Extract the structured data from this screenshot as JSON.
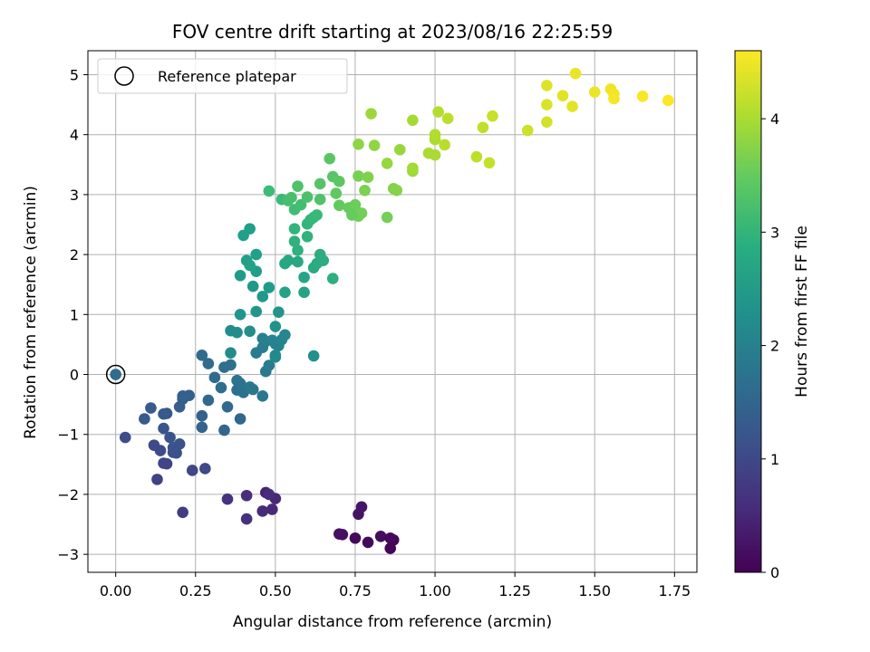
{
  "chart_data": {
    "type": "scatter",
    "title": "FOV centre drift starting at 2023/08/16 22:25:59",
    "xlabel": "Angular distance from reference (arcmin)",
    "ylabel": "Rotation from reference (arcmin)",
    "colorbar_label": "Hours from first FF file",
    "xlim": [
      -0.087,
      1.82
    ],
    "ylim": [
      -3.3,
      5.4
    ],
    "clim": [
      0,
      4.6
    ],
    "colormap": "viridis",
    "grid": true,
    "legend_placement": "top-left",
    "x_ticks": [
      "0.00",
      "0.25",
      "0.50",
      "0.75",
      "1.00",
      "1.25",
      "1.50",
      "1.75"
    ],
    "y_ticks": [
      "−3",
      "−2",
      "−1",
      "0",
      "1",
      "2",
      "3",
      "4",
      "5"
    ],
    "colorbar_ticks": [
      "0",
      "1",
      "2",
      "3",
      "4"
    ],
    "reference_point": {
      "name": "Reference platepar",
      "x": 0.0,
      "y": 0.0
    },
    "points": [
      {
        "x": 0.86,
        "y": -2.9,
        "t": 0.05
      },
      {
        "x": 0.87,
        "y": -2.76,
        "t": 0.07
      },
      {
        "x": 0.79,
        "y": -2.8,
        "t": 0.1
      },
      {
        "x": 0.75,
        "y": -2.73,
        "t": 0.12
      },
      {
        "x": 0.83,
        "y": -2.7,
        "t": 0.15
      },
      {
        "x": 0.71,
        "y": -2.67,
        "t": 0.18
      },
      {
        "x": 0.7,
        "y": -2.66,
        "t": 0.2
      },
      {
        "x": 0.76,
        "y": -2.33,
        "t": 0.23
      },
      {
        "x": 0.77,
        "y": -2.21,
        "t": 0.26
      },
      {
        "x": 0.86,
        "y": -2.73,
        "t": 0.1
      },
      {
        "x": 0.47,
        "y": -1.97,
        "t": 0.45
      },
      {
        "x": 0.5,
        "y": -2.07,
        "t": 0.5
      },
      {
        "x": 0.49,
        "y": -2.25,
        "t": 0.52
      },
      {
        "x": 0.46,
        "y": -2.28,
        "t": 0.55
      },
      {
        "x": 0.48,
        "y": -2.0,
        "t": 0.58
      },
      {
        "x": 0.41,
        "y": -2.02,
        "t": 0.62
      },
      {
        "x": 0.41,
        "y": -2.41,
        "t": 0.65
      },
      {
        "x": 0.35,
        "y": -2.08,
        "t": 0.68
      },
      {
        "x": 0.21,
        "y": -2.3,
        "t": 0.82
      },
      {
        "x": 0.13,
        "y": -1.75,
        "t": 0.9
      },
      {
        "x": 0.16,
        "y": -1.49,
        "t": 0.93
      },
      {
        "x": 0.15,
        "y": -1.48,
        "t": 0.95
      },
      {
        "x": 0.24,
        "y": -1.6,
        "t": 0.98
      },
      {
        "x": 0.28,
        "y": -1.57,
        "t": 1.0
      },
      {
        "x": 0.14,
        "y": -1.27,
        "t": 1.03
      },
      {
        "x": 0.12,
        "y": -1.18,
        "t": 1.05
      },
      {
        "x": 0.03,
        "y": -1.05,
        "t": 1.07
      },
      {
        "x": 0.18,
        "y": -1.3,
        "t": 1.1
      },
      {
        "x": 0.19,
        "y": -1.31,
        "t": 1.12
      },
      {
        "x": 0.2,
        "y": -1.16,
        "t": 1.15
      },
      {
        "x": 0.18,
        "y": -1.22,
        "t": 1.17
      },
      {
        "x": 0.17,
        "y": -1.05,
        "t": 1.2
      },
      {
        "x": 0.15,
        "y": -0.9,
        "t": 1.22
      },
      {
        "x": 0.16,
        "y": -0.65,
        "t": 1.25
      },
      {
        "x": 0.15,
        "y": -0.66,
        "t": 1.27
      },
      {
        "x": 0.09,
        "y": -0.74,
        "t": 1.3
      },
      {
        "x": 0.11,
        "y": -0.56,
        "t": 1.32
      },
      {
        "x": 0.2,
        "y": -0.54,
        "t": 1.35
      },
      {
        "x": 0.21,
        "y": -0.41,
        "t": 1.37
      },
      {
        "x": 0.23,
        "y": -0.35,
        "t": 1.4
      },
      {
        "x": 0.21,
        "y": -0.36,
        "t": 1.42
      },
      {
        "x": 0.27,
        "y": -0.69,
        "t": 1.45
      },
      {
        "x": 0.27,
        "y": -0.88,
        "t": 1.47
      },
      {
        "x": 0.34,
        "y": -0.93,
        "t": 1.5
      },
      {
        "x": 0.39,
        "y": -0.74,
        "t": 1.52
      },
      {
        "x": 0.29,
        "y": -0.43,
        "t": 1.55
      },
      {
        "x": 0.35,
        "y": -0.54,
        "t": 1.57
      },
      {
        "x": 0.31,
        "y": -0.05,
        "t": 1.6
      },
      {
        "x": 0.33,
        "y": -0.22,
        "t": 1.62
      },
      {
        "x": 0.34,
        "y": 0.12,
        "t": 1.65
      },
      {
        "x": 0.36,
        "y": 0.16,
        "t": 1.67
      },
      {
        "x": 0.38,
        "y": -0.26,
        "t": 1.7
      },
      {
        "x": 0.4,
        "y": -0.3,
        "t": 1.72
      },
      {
        "x": 0.38,
        "y": -0.1,
        "t": 1.75
      },
      {
        "x": 0.39,
        "y": -0.15,
        "t": 1.77
      },
      {
        "x": 0.43,
        "y": -0.25,
        "t": 1.8
      },
      {
        "x": 0.46,
        "y": -0.36,
        "t": 1.82
      },
      {
        "x": 0.42,
        "y": -0.21,
        "t": 1.85
      },
      {
        "x": 0.47,
        "y": 0.05,
        "t": 1.87
      },
      {
        "x": 0.48,
        "y": 0.15,
        "t": 1.9
      },
      {
        "x": 0.44,
        "y": 0.36,
        "t": 1.92
      },
      {
        "x": 0.46,
        "y": 0.45,
        "t": 1.95
      },
      {
        "x": 0.47,
        "y": 0.55,
        "t": 1.97
      },
      {
        "x": 0.46,
        "y": 0.6,
        "t": 2.0
      },
      {
        "x": 0.49,
        "y": 0.57,
        "t": 2.02
      },
      {
        "x": 0.5,
        "y": 0.51,
        "t": 2.05
      },
      {
        "x": 0.51,
        "y": 0.48,
        "t": 2.07
      },
      {
        "x": 0.52,
        "y": 0.58,
        "t": 2.1
      },
      {
        "x": 0.53,
        "y": 0.66,
        "t": 2.12
      },
      {
        "x": 0.5,
        "y": 0.32,
        "t": 2.15
      },
      {
        "x": 0.5,
        "y": 0.29,
        "t": 2.17
      },
      {
        "x": 0.36,
        "y": 0.36,
        "t": 2.2
      },
      {
        "x": 0.38,
        "y": 0.7,
        "t": 2.22
      },
      {
        "x": 0.36,
        "y": 0.73,
        "t": 2.25
      },
      {
        "x": 0.42,
        "y": 0.72,
        "t": 2.27
      },
      {
        "x": 0.27,
        "y": 0.32,
        "t": 1.6
      },
      {
        "x": 0.29,
        "y": 0.18,
        "t": 1.62
      },
      {
        "x": 0.62,
        "y": 0.31,
        "t": 2.3
      },
      {
        "x": 0.5,
        "y": 0.8,
        "t": 2.35
      },
      {
        "x": 0.51,
        "y": 1.04,
        "t": 2.37
      },
      {
        "x": 0.39,
        "y": 1.0,
        "t": 2.4
      },
      {
        "x": 0.44,
        "y": 1.05,
        "t": 2.42
      },
      {
        "x": 0.46,
        "y": 1.3,
        "t": 2.45
      },
      {
        "x": 0.43,
        "y": 1.47,
        "t": 2.47
      },
      {
        "x": 0.48,
        "y": 1.45,
        "t": 2.5
      },
      {
        "x": 0.39,
        "y": 1.65,
        "t": 2.52
      },
      {
        "x": 0.44,
        "y": 1.72,
        "t": 2.55
      },
      {
        "x": 0.44,
        "y": 2.0,
        "t": 2.57
      },
      {
        "x": 0.41,
        "y": 1.9,
        "t": 2.6
      },
      {
        "x": 0.42,
        "y": 1.82,
        "t": 2.62
      },
      {
        "x": 0.53,
        "y": 1.37,
        "t": 2.65
      },
      {
        "x": 0.59,
        "y": 1.37,
        "t": 2.67
      },
      {
        "x": 0.59,
        "y": 1.62,
        "t": 2.7
      },
      {
        "x": 0.53,
        "y": 1.85,
        "t": 2.72
      },
      {
        "x": 0.54,
        "y": 1.9,
        "t": 2.75
      },
      {
        "x": 0.57,
        "y": 1.88,
        "t": 2.77
      },
      {
        "x": 0.62,
        "y": 1.78,
        "t": 2.8
      },
      {
        "x": 0.63,
        "y": 1.85,
        "t": 2.82
      },
      {
        "x": 0.65,
        "y": 1.9,
        "t": 2.85
      },
      {
        "x": 0.64,
        "y": 2.0,
        "t": 2.87
      },
      {
        "x": 0.68,
        "y": 1.6,
        "t": 2.9
      },
      {
        "x": 0.57,
        "y": 2.07,
        "t": 2.92
      },
      {
        "x": 0.56,
        "y": 2.22,
        "t": 2.95
      },
      {
        "x": 0.6,
        "y": 2.3,
        "t": 2.97
      },
      {
        "x": 0.56,
        "y": 2.43,
        "t": 3.0
      },
      {
        "x": 0.6,
        "y": 2.51,
        "t": 3.02
      },
      {
        "x": 0.61,
        "y": 2.58,
        "t": 3.05
      },
      {
        "x": 0.62,
        "y": 2.62,
        "t": 3.07
      },
      {
        "x": 0.63,
        "y": 2.66,
        "t": 3.1
      },
      {
        "x": 0.4,
        "y": 2.32,
        "t": 2.57
      },
      {
        "x": 0.42,
        "y": 2.43,
        "t": 2.6
      },
      {
        "x": 0.52,
        "y": 2.92,
        "t": 3.12
      },
      {
        "x": 0.48,
        "y": 3.06,
        "t": 3.15
      },
      {
        "x": 0.56,
        "y": 2.75,
        "t": 3.17
      },
      {
        "x": 0.58,
        "y": 2.83,
        "t": 3.2
      },
      {
        "x": 0.54,
        "y": 2.9,
        "t": 3.22
      },
      {
        "x": 0.55,
        "y": 2.95,
        "t": 3.25
      },
      {
        "x": 0.6,
        "y": 2.96,
        "t": 3.27
      },
      {
        "x": 0.57,
        "y": 3.14,
        "t": 3.3
      },
      {
        "x": 0.64,
        "y": 2.92,
        "t": 3.32
      },
      {
        "x": 0.64,
        "y": 3.18,
        "t": 3.35
      },
      {
        "x": 0.68,
        "y": 3.3,
        "t": 3.37
      },
      {
        "x": 0.67,
        "y": 3.6,
        "t": 3.4
      },
      {
        "x": 0.7,
        "y": 3.22,
        "t": 3.42
      },
      {
        "x": 0.69,
        "y": 3.02,
        "t": 3.45
      },
      {
        "x": 0.7,
        "y": 2.82,
        "t": 3.47
      },
      {
        "x": 0.73,
        "y": 2.78,
        "t": 3.5
      },
      {
        "x": 0.74,
        "y": 2.7,
        "t": 3.52
      },
      {
        "x": 0.75,
        "y": 2.83,
        "t": 3.55
      },
      {
        "x": 0.76,
        "y": 2.64,
        "t": 3.57
      },
      {
        "x": 0.77,
        "y": 2.69,
        "t": 3.6
      },
      {
        "x": 0.74,
        "y": 2.66,
        "t": 3.5
      },
      {
        "x": 0.76,
        "y": 3.31,
        "t": 3.65
      },
      {
        "x": 0.78,
        "y": 3.07,
        "t": 3.67
      },
      {
        "x": 0.79,
        "y": 3.29,
        "t": 3.7
      },
      {
        "x": 0.85,
        "y": 2.62,
        "t": 3.62
      },
      {
        "x": 0.87,
        "y": 3.1,
        "t": 3.72
      },
      {
        "x": 0.88,
        "y": 3.07,
        "t": 3.75
      },
      {
        "x": 0.76,
        "y": 3.84,
        "t": 3.8
      },
      {
        "x": 0.81,
        "y": 3.82,
        "t": 3.82
      },
      {
        "x": 0.85,
        "y": 3.52,
        "t": 3.85
      },
      {
        "x": 0.89,
        "y": 3.75,
        "t": 3.87
      },
      {
        "x": 0.8,
        "y": 4.35,
        "t": 3.9
      },
      {
        "x": 0.93,
        "y": 3.39,
        "t": 3.92
      },
      {
        "x": 0.93,
        "y": 3.44,
        "t": 3.95
      },
      {
        "x": 0.93,
        "y": 4.24,
        "t": 3.97
      },
      {
        "x": 0.98,
        "y": 3.69,
        "t": 4.0
      },
      {
        "x": 1.0,
        "y": 3.92,
        "t": 4.02
      },
      {
        "x": 1.0,
        "y": 4.0,
        "t": 4.05
      },
      {
        "x": 1.0,
        "y": 3.66,
        "t": 4.0
      },
      {
        "x": 1.01,
        "y": 4.38,
        "t": 4.07
      },
      {
        "x": 1.03,
        "y": 3.83,
        "t": 4.1
      },
      {
        "x": 1.04,
        "y": 4.27,
        "t": 4.12
      },
      {
        "x": 1.13,
        "y": 3.63,
        "t": 4.15
      },
      {
        "x": 1.15,
        "y": 4.12,
        "t": 4.17
      },
      {
        "x": 1.17,
        "y": 3.53,
        "t": 4.2
      },
      {
        "x": 1.18,
        "y": 4.31,
        "t": 4.22
      },
      {
        "x": 1.29,
        "y": 4.07,
        "t": 4.25
      },
      {
        "x": 1.35,
        "y": 4.21,
        "t": 4.3
      },
      {
        "x": 1.35,
        "y": 4.5,
        "t": 4.35
      },
      {
        "x": 1.35,
        "y": 4.82,
        "t": 4.38
      },
      {
        "x": 1.4,
        "y": 4.65,
        "t": 4.4
      },
      {
        "x": 1.43,
        "y": 4.47,
        "t": 4.42
      },
      {
        "x": 1.44,
        "y": 5.02,
        "t": 4.45
      },
      {
        "x": 1.5,
        "y": 4.71,
        "t": 4.47
      },
      {
        "x": 1.55,
        "y": 4.76,
        "t": 4.5
      },
      {
        "x": 1.56,
        "y": 4.68,
        "t": 4.52
      },
      {
        "x": 1.56,
        "y": 4.6,
        "t": 4.55
      },
      {
        "x": 1.65,
        "y": 4.64,
        "t": 4.57
      },
      {
        "x": 1.73,
        "y": 4.57,
        "t": 4.6
      }
    ]
  }
}
